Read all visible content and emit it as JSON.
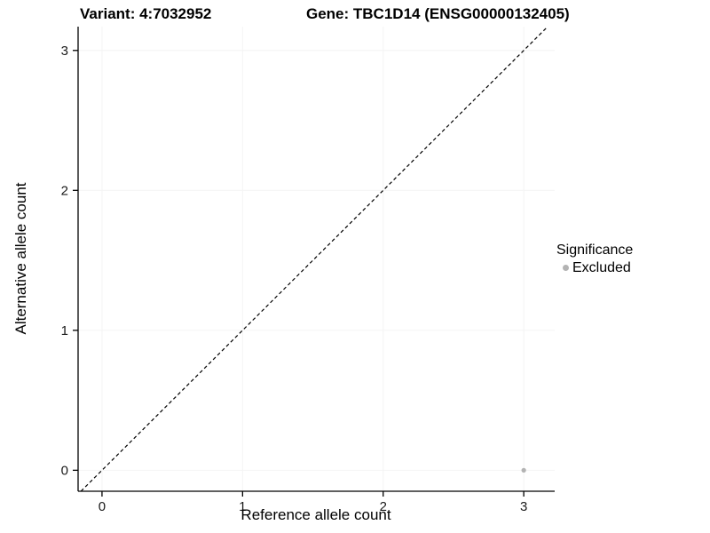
{
  "figure": {
    "titles": {
      "variant": "Variant: 4:7032952",
      "gene": "Gene: TBC1D14 (ENSG00000132405)"
    }
  },
  "legend": {
    "title": "Significance",
    "entries": [
      {
        "label": "Excluded",
        "color": "#b3b3b3",
        "marker": "dot-icon"
      }
    ]
  },
  "colors": {
    "background": "#ffffff",
    "panel_background": "#ffffff",
    "grid": "#f4f4f4",
    "axis": "#000000",
    "tick_label": "#1a1a1a"
  },
  "chart_data": {
    "type": "scatter",
    "title": "Variant: 4:7032952 — Gene: TBC1D14 (ENSG00000132405)",
    "xlabel": "Reference allele count",
    "ylabel": "Alternative allele count",
    "xlim": [
      -0.17,
      3.22
    ],
    "ylim": [
      -0.15,
      3.17
    ],
    "xticks": [
      0,
      1,
      2,
      3
    ],
    "yticks": [
      0,
      1,
      2,
      3
    ],
    "grid": "faint",
    "legend_position": "right",
    "legend_title": "Significance",
    "identity_line": {
      "type": "abline",
      "slope": 1,
      "intercept": 0,
      "style": "dashed",
      "color": "#000000"
    },
    "series": [
      {
        "name": "Excluded",
        "color": "#b3b3b3",
        "points": [
          {
            "x": 3,
            "y": 0
          }
        ]
      }
    ]
  }
}
